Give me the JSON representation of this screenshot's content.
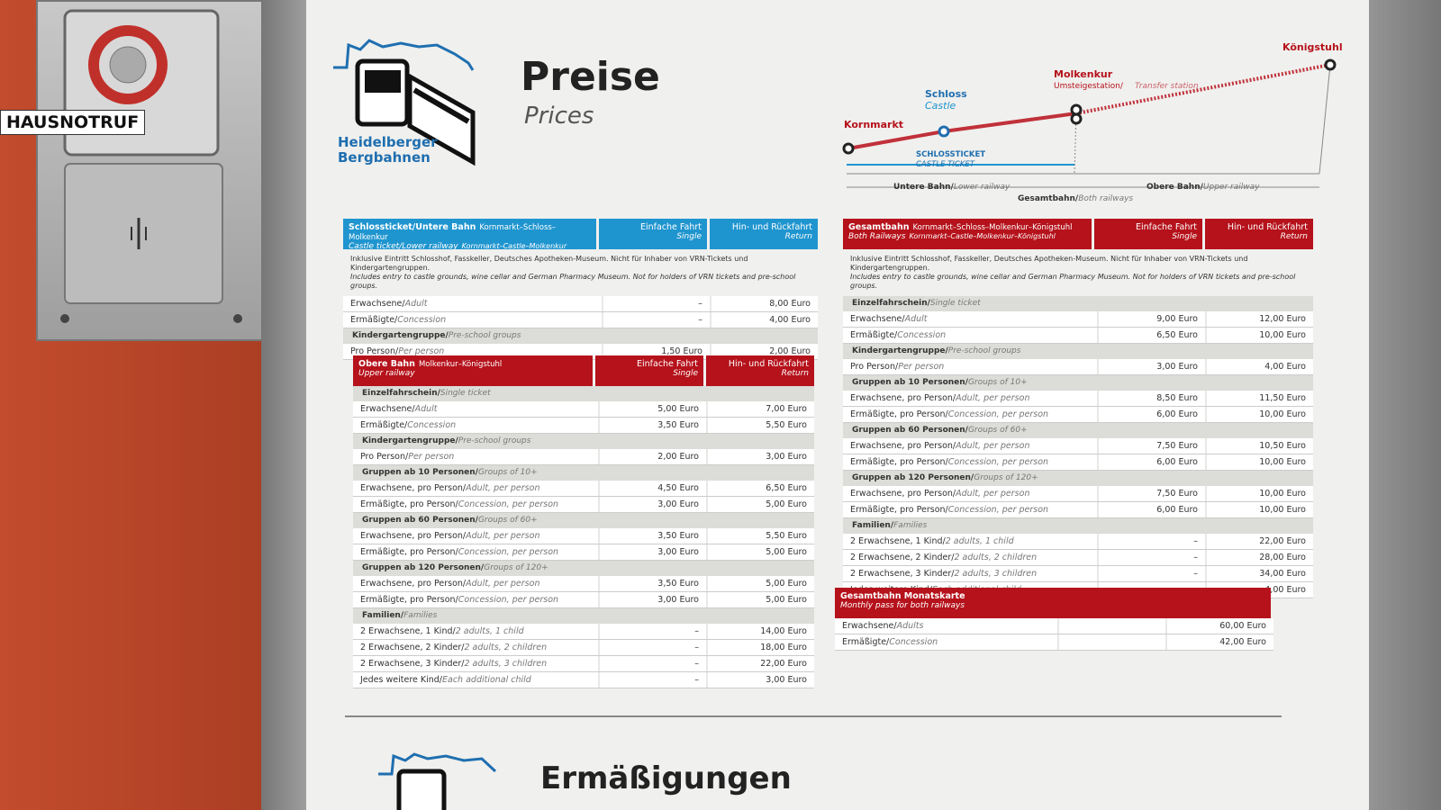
{
  "intercom": {
    "label": "HAUSNOTRUF"
  },
  "logo": {
    "lines": [
      "Heidelberger",
      "Bergbahnen"
    ]
  },
  "header": {
    "title": "Preise",
    "subtitle": "Prices"
  },
  "route_map": {
    "stations": [
      {
        "name": "Kornmarkt"
      },
      {
        "name": "Schloss",
        "name_en": "Castle"
      },
      {
        "name": "Molkenkur",
        "note_de": "Umsteigestation/",
        "note_en": "Transfer station"
      },
      {
        "name": "Königstuhl"
      }
    ],
    "castle_ticket": [
      "SCHLOSSTICKET",
      "CASTLE TICKET"
    ],
    "lower": {
      "de": "Untere Bahn/",
      "en": "Lower railway"
    },
    "upper": {
      "de": "Obere Bahn/",
      "en": "Upper railway"
    },
    "both": {
      "de": "Gesamtbahn/",
      "en": "Both railways"
    }
  },
  "tables": [
    {
      "color": "#1f95cf",
      "title_de": "Schlossticket/Untere Bahn",
      "route_de": "Kornmarkt–Schloss–Molkenkur",
      "title_en": "Castle ticket/Lower railway",
      "route_en": "Kornmarkt–Castle–Molkenkur",
      "columns": [
        {
          "de": "Einfache Fahrt",
          "en": "Single"
        },
        {
          "de": "Hin- und Rückfahrt",
          "en": "Return"
        }
      ],
      "note": [
        "Inklusive Eintritt Schlosshof, Fasskeller, Deutsches Apotheken-Museum. Nicht für Inhaber von VRN-Tickets und Kindergartengruppen.",
        "Includes entry to castle grounds, wine cellar and German Pharmacy Museum. Not for holders of VRN tickets and pre-school groups."
      ],
      "rows": [
        {
          "de": "Erwachsene/",
          "en": "Adult",
          "single": "–",
          "return": "8,00 Euro"
        },
        {
          "de": "Ermäßigte/",
          "en": "Concession",
          "single": "–",
          "return": "4,00 Euro"
        },
        {
          "group_de": "Kindergartengruppe/",
          "group_en": "Pre-school groups"
        },
        {
          "de": "Pro Person/",
          "en": "Per person",
          "single": "1,50 Euro",
          "return": "2,00 Euro"
        }
      ]
    },
    {
      "color": "#b5121b",
      "title_de": "Obere Bahn",
      "route_de": "Molkenkur–Königstuhl",
      "title_en": "Upper railway",
      "columns": [
        {
          "de": "Einfache Fahrt",
          "en": "Single"
        },
        {
          "de": "Hin- und Rückfahrt",
          "en": "Return"
        }
      ],
      "rows": [
        {
          "group_de": "Einzelfahrschein/",
          "group_en": "Single ticket"
        },
        {
          "de": "Erwachsene/",
          "en": "Adult",
          "single": "5,00 Euro",
          "return": "7,00 Euro"
        },
        {
          "de": "Ermäßigte/",
          "en": "Concession",
          "single": "3,50 Euro",
          "return": "5,50 Euro"
        },
        {
          "group_de": "Kindergartengruppe/",
          "group_en": "Pre-school groups"
        },
        {
          "de": "Pro Person/",
          "en": "Per person",
          "single": "2,00 Euro",
          "return": "3,00 Euro"
        },
        {
          "group_de": "Gruppen ab 10 Personen/",
          "group_en": "Groups of 10+"
        },
        {
          "de": "Erwachsene, pro Person/",
          "en": "Adult, per person",
          "single": "4,50 Euro",
          "return": "6,50 Euro"
        },
        {
          "de": "Ermäßigte, pro Person/",
          "en": "Concession, per person",
          "single": "3,00 Euro",
          "return": "5,00 Euro"
        },
        {
          "group_de": "Gruppen ab 60 Personen/",
          "group_en": "Groups of 60+"
        },
        {
          "de": "Erwachsene, pro Person/",
          "en": "Adult, per person",
          "single": "3,50 Euro",
          "return": "5,50 Euro"
        },
        {
          "de": "Ermäßigte, pro Person/",
          "en": "Concession, per person",
          "single": "3,00 Euro",
          "return": "5,00 Euro"
        },
        {
          "group_de": "Gruppen ab 120 Personen/",
          "group_en": "Groups of 120+"
        },
        {
          "de": "Erwachsene, pro Person/",
          "en": "Adult, per person",
          "single": "3,50 Euro",
          "return": "5,00 Euro"
        },
        {
          "de": "Ermäßigte, pro Person/",
          "en": "Concession, per person",
          "single": "3,00 Euro",
          "return": "5,00 Euro"
        },
        {
          "group_de": "Familien/",
          "group_en": "Families"
        },
        {
          "de": "2 Erwachsene, 1 Kind/",
          "en": "2 adults, 1 child",
          "single": "–",
          "return": "14,00 Euro"
        },
        {
          "de": "2 Erwachsene, 2 Kinder/",
          "en": "2 adults, 2 children",
          "single": "–",
          "return": "18,00 Euro"
        },
        {
          "de": "2 Erwachsene, 3 Kinder/",
          "en": "2 adults, 3 children",
          "single": "–",
          "return": "22,00 Euro"
        },
        {
          "de": "Jedes weitere Kind/",
          "en": "Each additional child",
          "single": "–",
          "return": "3,00 Euro"
        }
      ]
    },
    {
      "color": "#b5121b",
      "title_de": "Gesamtbahn",
      "route_de": "Kornmarkt–Schloss–Molkenkur–Königstuhl",
      "title_en": "Both Railways",
      "route_en": "Kornmarkt–Castle–Molkenkur–Königstuhl",
      "columns": [
        {
          "de": "Einfache Fahrt",
          "en": "Single"
        },
        {
          "de": "Hin- und Rückfahrt",
          "en": "Return"
        }
      ],
      "note": [
        "Inklusive Eintritt Schlosshof, Fasskeller, Deutsches Apotheken-Museum. Nicht für Inhaber von VRN-Tickets und Kindergartengruppen.",
        "Includes entry to castle grounds, wine cellar and German Pharmacy Museum. Not for holders of VRN tickets and pre-school groups."
      ],
      "rows": [
        {
          "group_de": "Einzelfahrschein/",
          "group_en": "Single ticket"
        },
        {
          "de": "Erwachsene/",
          "en": "Adult",
          "single": "9,00 Euro",
          "return": "12,00 Euro"
        },
        {
          "de": "Ermäßigte/",
          "en": "Concession",
          "single": "6,50 Euro",
          "return": "10,00 Euro"
        },
        {
          "group_de": "Kindergartengruppe/",
          "group_en": "Pre-school groups"
        },
        {
          "de": "Pro Person/",
          "en": "Per person",
          "single": "3,00 Euro",
          "return": "4,00 Euro"
        },
        {
          "group_de": "Gruppen ab 10 Personen/",
          "group_en": "Groups of 10+"
        },
        {
          "de": "Erwachsene, pro Person/",
          "en": "Adult, per person",
          "single": "8,50 Euro",
          "return": "11,50 Euro"
        },
        {
          "de": "Ermäßigte, pro Person/",
          "en": "Concession, per person",
          "single": "6,00 Euro",
          "return": "10,00 Euro"
        },
        {
          "group_de": "Gruppen ab 60 Personen/",
          "group_en": "Groups of 60+"
        },
        {
          "de": "Erwachsene, pro Person/",
          "en": "Adult, per person",
          "single": "7,50 Euro",
          "return": "10,50 Euro"
        },
        {
          "de": "Ermäßigte, pro Person/",
          "en": "Concession, per person",
          "single": "6,00 Euro",
          "return": "10,00 Euro"
        },
        {
          "group_de": "Gruppen ab 120 Personen/",
          "group_en": "Groups of 120+"
        },
        {
          "de": "Erwachsene, pro Person/",
          "en": "Adult, per person",
          "single": "7,50 Euro",
          "return": "10,00 Euro"
        },
        {
          "de": "Ermäßigte, pro Person/",
          "en": "Concession, per person",
          "single": "6,00 Euro",
          "return": "10,00 Euro"
        },
        {
          "group_de": "Familien/",
          "group_en": "Families"
        },
        {
          "de": "2 Erwachsene, 1 Kind/",
          "en": "2 adults, 1 child",
          "single": "–",
          "return": "22,00 Euro"
        },
        {
          "de": "2 Erwachsene, 2 Kinder/",
          "en": "2 adults, 2 children",
          "single": "–",
          "return": "28,00 Euro"
        },
        {
          "de": "2 Erwachsene, 3 Kinder/",
          "en": "2 adults, 3 children",
          "single": "–",
          "return": "34,00 Euro"
        },
        {
          "de": "Jedes weitere Kind/",
          "en": "Each additional child",
          "single": "–",
          "return": "4,00 Euro"
        }
      ]
    },
    {
      "color": "#b5121b",
      "title_de": "Gesamtbahn Monatskarte",
      "title_en": "Monthly pass for both railways",
      "rows": [
        {
          "de": "Erwachsene/",
          "en": "Adults",
          "return": "60,00 Euro"
        },
        {
          "de": "Ermäßigte/",
          "en": "Concession",
          "return": "42,00 Euro"
        }
      ]
    }
  ],
  "footer": {
    "title": "Ermäßigungen"
  }
}
